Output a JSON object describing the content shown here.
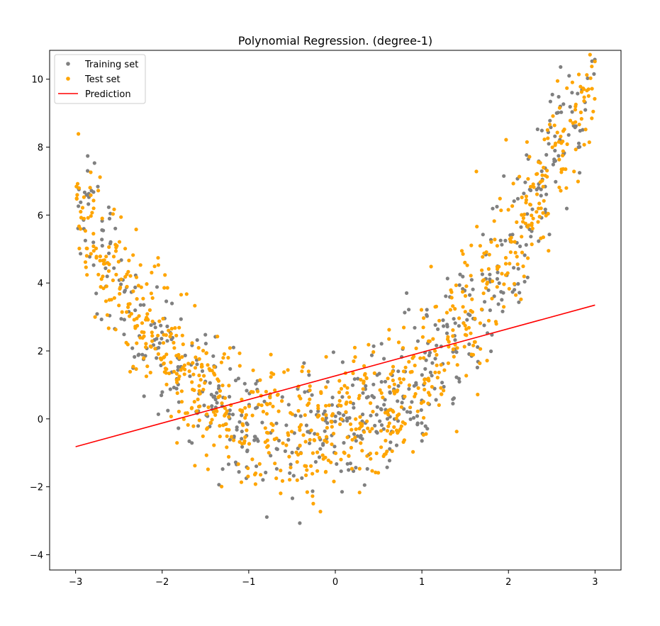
{
  "chart_data": {
    "type": "scatter",
    "title": "Polynomial Regression. (degree-1)",
    "xlabel": "",
    "ylabel": "",
    "xlim": [
      -3.3,
      3.3
    ],
    "ylim": [
      -4.45,
      10.85
    ],
    "x_ticks": [
      -3,
      -2,
      -1,
      0,
      1,
      2,
      3
    ],
    "y_ticks": [
      -4,
      -2,
      0,
      2,
      4,
      6,
      8,
      10
    ],
    "grid": false,
    "legend_position": "top-left",
    "model": {
      "quadratic": 0.98,
      "linear": 0.69,
      "intercept": -0.35,
      "noise": 1.0
    },
    "series": [
      {
        "name": "Training set",
        "kind": "scatter",
        "color": "#808080",
        "n": 600,
        "seed": 17
      },
      {
        "name": "Test set",
        "kind": "scatter",
        "color": "#ffa500",
        "n": 900,
        "seed": 42
      },
      {
        "name": "Prediction",
        "kind": "line",
        "color": "#ff0000",
        "x": [
          -3,
          3
        ],
        "y": [
          -0.82,
          3.35
        ]
      }
    ]
  }
}
